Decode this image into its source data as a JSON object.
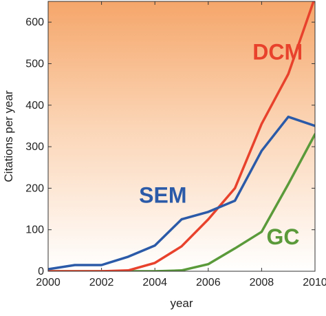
{
  "chart_data": {
    "type": "line",
    "title": "",
    "xlabel": "year",
    "ylabel": "Citations per year",
    "xlim": [
      2000,
      2010
    ],
    "ylim": [
      0,
      650
    ],
    "x_ticks": [
      2000,
      2002,
      2004,
      2006,
      2008,
      2010
    ],
    "y_ticks": [
      0,
      100,
      200,
      300,
      400,
      500,
      600
    ],
    "x_tick_labels": [
      "2000",
      "2002",
      "2004",
      "2006",
      "2008",
      "2010"
    ],
    "y_tick_labels": [
      "0",
      "100",
      "200",
      "300",
      "400",
      "500",
      "600"
    ],
    "grid": false,
    "background": "orange-to-white vertical gradient",
    "series": [
      {
        "name": "DCM",
        "color": "#e8412c",
        "x": [
          2000,
          2001,
          2002,
          2003,
          2004,
          2005,
          2006,
          2007,
          2008,
          2009,
          2010
        ],
        "y": [
          0,
          0,
          0,
          2,
          20,
          60,
          125,
          200,
          355,
          475,
          660
        ],
        "label_anchor": [
          2008.6,
          510
        ]
      },
      {
        "name": "SEM",
        "color": "#2a5aa8",
        "x": [
          2000,
          2001,
          2002,
          2003,
          2004,
          2005,
          2006,
          2007,
          2008,
          2009,
          2010
        ],
        "y": [
          5,
          15,
          15,
          35,
          62,
          125,
          143,
          170,
          290,
          372,
          350
        ],
        "label_anchor": [
          2004.3,
          165
        ]
      },
      {
        "name": "GC",
        "color": "#5a9a3a",
        "x": [
          2000,
          2001,
          2002,
          2003,
          2004,
          2005,
          2006,
          2007,
          2008,
          2009,
          2010
        ],
        "y": [
          0,
          0,
          0,
          0,
          0,
          2,
          17,
          55,
          95,
          210,
          330
        ],
        "label_anchor": [
          2008.8,
          65
        ]
      }
    ]
  }
}
